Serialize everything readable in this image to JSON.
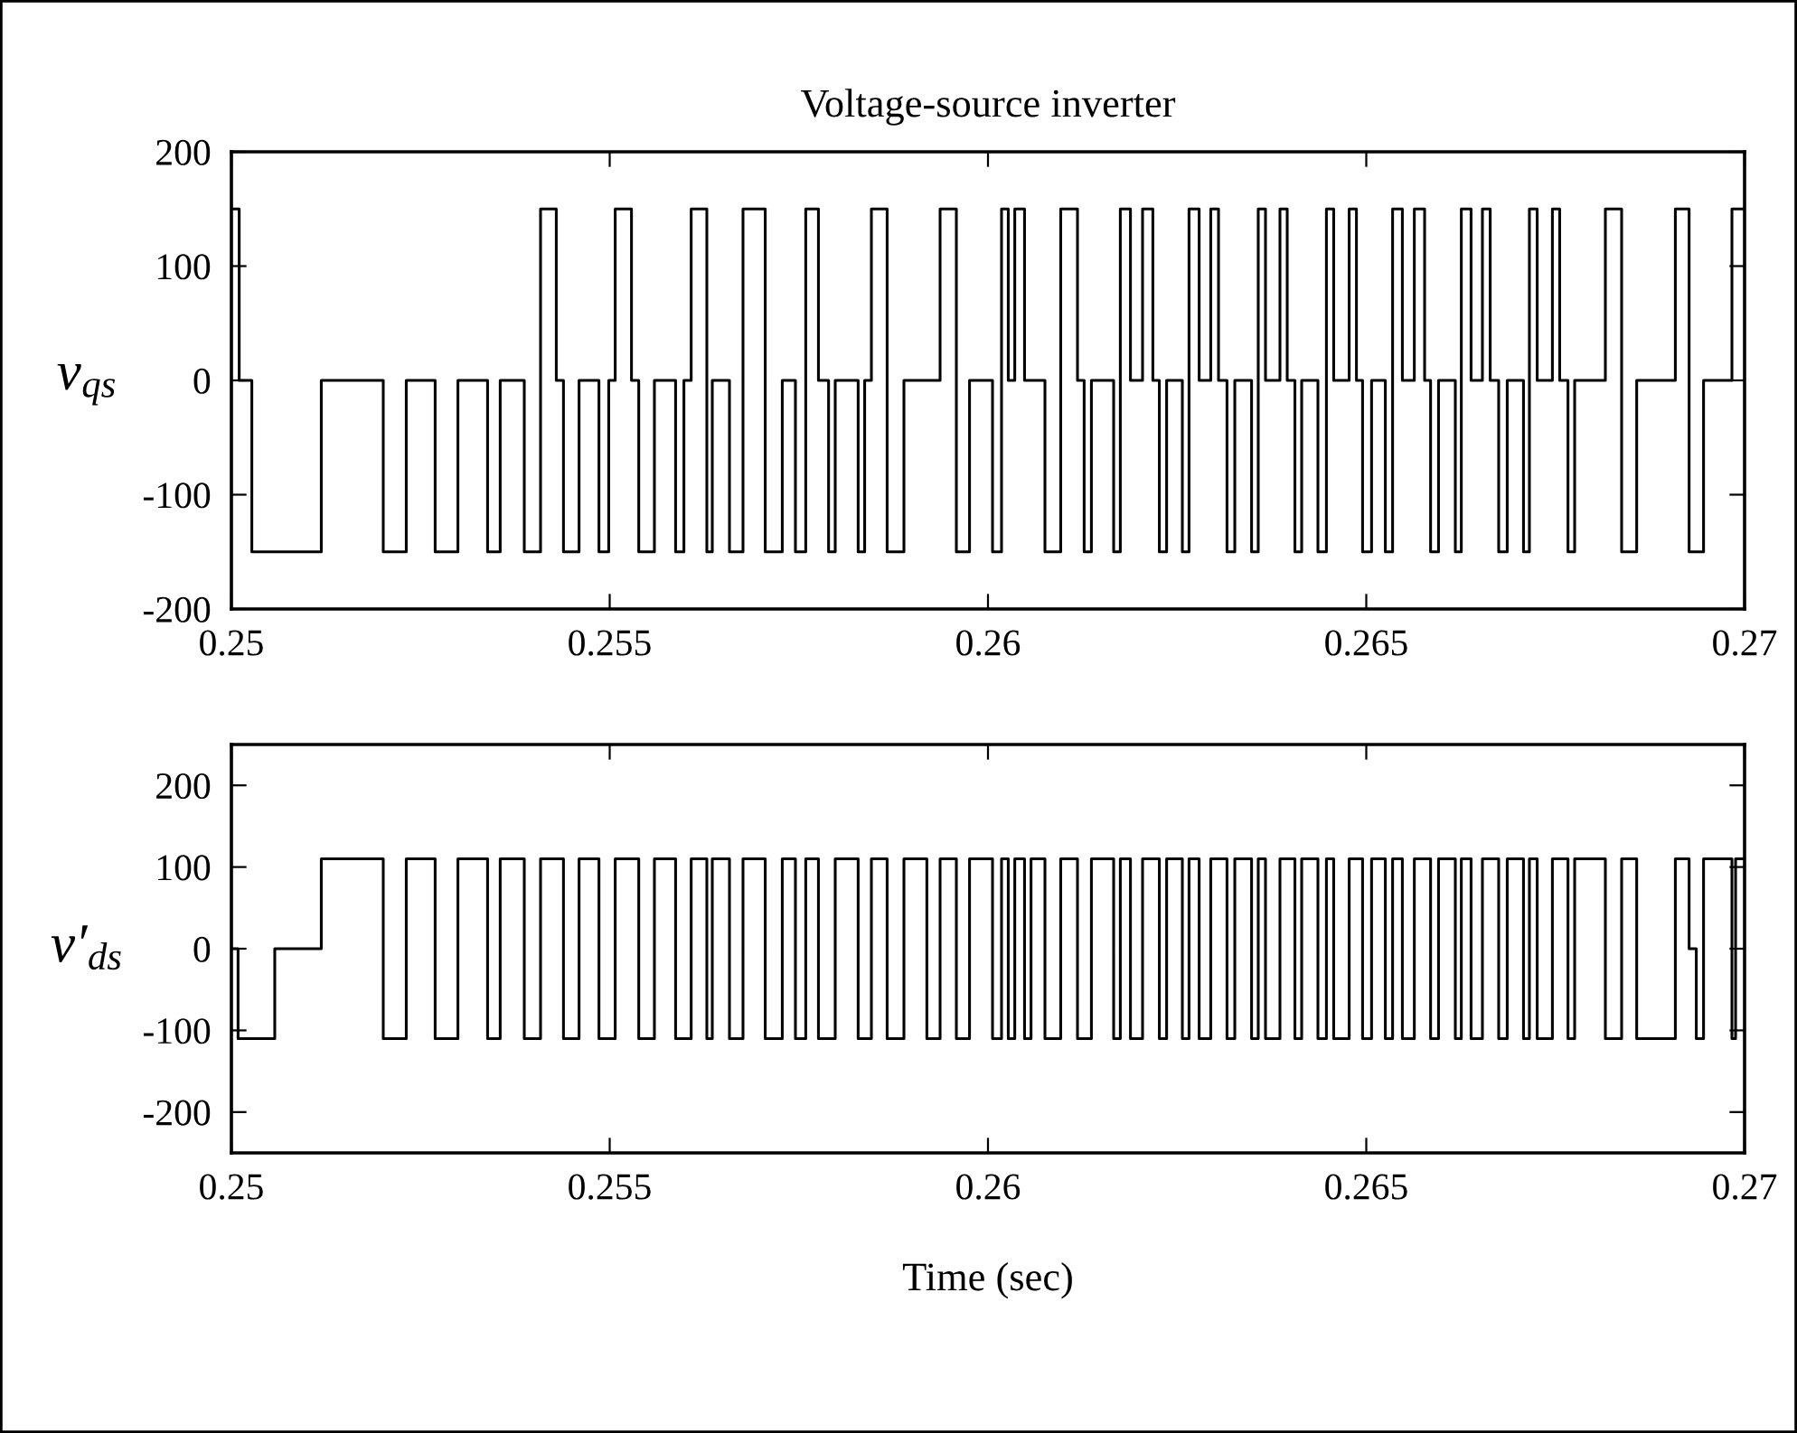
{
  "chart_data": [
    {
      "type": "step",
      "title": "Voltage-source inverter",
      "ylabel": "v$_{qs}$",
      "color": "#000000",
      "grid": false,
      "legend": false,
      "x": [
        0.25,
        0.250103,
        0.25027,
        0.251188,
        0.252007,
        0.252311,
        0.252693,
        0.252994,
        0.253386,
        0.253553,
        0.253871,
        0.254086,
        0.254294,
        0.254389,
        0.254595,
        0.254858,
        0.254987,
        0.255073,
        0.255288,
        0.255384,
        0.255591,
        0.255871,
        0.255981,
        0.256077,
        0.256284,
        0.256356,
        0.256583,
        0.256762,
        0.257056,
        0.257281,
        0.257455,
        0.257591,
        0.257759,
        0.257893,
        0.257981,
        0.258284,
        0.25837,
        0.258459,
        0.258667,
        0.258889,
        0.259367,
        0.259582,
        0.259756,
        0.26006,
        0.260179,
        0.260268,
        0.260354,
        0.260483,
        0.260753,
        0.260961,
        0.261183,
        0.261271,
        0.261367,
        0.261661,
        0.261749,
        0.261883,
        0.262043,
        0.262179,
        0.262265,
        0.262361,
        0.262569,
        0.262657,
        0.262791,
        0.262944,
        0.263047,
        0.263159,
        0.263262,
        0.263484,
        0.263572,
        0.263668,
        0.263859,
        0.263955,
        0.264057,
        0.264146,
        0.264361,
        0.264473,
        0.264569,
        0.264774,
        0.26487,
        0.264951,
        0.26507,
        0.265252,
        0.265348,
        0.265477,
        0.265635,
        0.265771,
        0.26585,
        0.265955,
        0.266177,
        0.266256,
        0.266385,
        0.266535,
        0.266638,
        0.26675,
        0.266863,
        0.267078,
        0.267156,
        0.267259,
        0.26746,
        0.267556,
        0.267666,
        0.267754,
        0.26816,
        0.268375,
        0.268574,
        0.269085,
        0.269267,
        0.269458,
        0.269833,
        0.27
      ],
      "values": [
        150,
        0,
        -150,
        0,
        -150,
        0,
        -150,
        0,
        -150,
        0,
        -150,
        150,
        0,
        -150,
        0,
        -150,
        0,
        150,
        0,
        -150,
        0,
        -150,
        0,
        150,
        -150,
        0,
        -150,
        150,
        -150,
        0,
        -150,
        150,
        0,
        -150,
        0,
        -150,
        0,
        150,
        -150,
        0,
        150,
        -150,
        0,
        -150,
        150,
        0,
        150,
        0,
        -150,
        150,
        0,
        -150,
        0,
        -150,
        150,
        0,
        150,
        0,
        -150,
        0,
        -150,
        150,
        0,
        150,
        0,
        -150,
        0,
        -150,
        150,
        0,
        150,
        0,
        -150,
        0,
        -150,
        150,
        0,
        150,
        0,
        -150,
        0,
        -150,
        150,
        0,
        150,
        0,
        -150,
        0,
        -150,
        150,
        0,
        150,
        0,
        -150,
        0,
        -150,
        150,
        0,
        150,
        0,
        -150,
        0,
        150,
        -150,
        0,
        150,
        -150,
        0,
        150,
        150
      ],
      "xlim": [
        0.25,
        0.27
      ],
      "xticks": [
        0.25,
        0.255,
        0.26,
        0.265,
        0.27
      ],
      "ylim": [
        -200,
        200
      ],
      "yticks": [
        -200,
        -100,
        0,
        100,
        200
      ]
    },
    {
      "type": "step",
      "xlabel": "Time (sec)",
      "ylabel": "v′$_{ds}$",
      "color": "#000000",
      "grid": false,
      "legend": false,
      "x": [
        0.25,
        0.250088,
        0.250573,
        0.251188,
        0.252007,
        0.252311,
        0.252693,
        0.252994,
        0.253386,
        0.253553,
        0.253871,
        0.254086,
        0.254389,
        0.254595,
        0.254858,
        0.255073,
        0.255384,
        0.255591,
        0.255871,
        0.256077,
        0.256284,
        0.256356,
        0.256583,
        0.256762,
        0.257056,
        0.257281,
        0.257455,
        0.257591,
        0.257759,
        0.257981,
        0.258284,
        0.258459,
        0.258667,
        0.258889,
        0.259192,
        0.259367,
        0.259582,
        0.259756,
        0.26006,
        0.260179,
        0.260268,
        0.260354,
        0.260483,
        0.260569,
        0.260753,
        0.260961,
        0.261183,
        0.261367,
        0.261661,
        0.261749,
        0.261883,
        0.262043,
        0.262265,
        0.262361,
        0.262569,
        0.262657,
        0.262791,
        0.262944,
        0.263159,
        0.263262,
        0.263484,
        0.263572,
        0.263668,
        0.263859,
        0.264057,
        0.264146,
        0.264361,
        0.264473,
        0.264569,
        0.264774,
        0.264951,
        0.26507,
        0.265252,
        0.265348,
        0.265477,
        0.265635,
        0.26585,
        0.265955,
        0.266177,
        0.266256,
        0.266385,
        0.266535,
        0.26675,
        0.266863,
        0.267078,
        0.267156,
        0.267259,
        0.26746,
        0.267666,
        0.267754,
        0.26816,
        0.268375,
        0.268574,
        0.269085,
        0.269267,
        0.269362,
        0.269458,
        0.269833,
        0.269881,
        0.27
      ],
      "values": [
        0,
        -110,
        0,
        110,
        -110,
        110,
        -110,
        110,
        -110,
        110,
        -110,
        110,
        -110,
        110,
        -110,
        110,
        -110,
        110,
        -110,
        110,
        -110,
        110,
        -110,
        110,
        -110,
        110,
        -110,
        110,
        -110,
        110,
        -110,
        110,
        -110,
        110,
        -110,
        110,
        -110,
        110,
        -110,
        110,
        -110,
        110,
        -110,
        110,
        -110,
        110,
        -110,
        110,
        -110,
        110,
        -110,
        110,
        -110,
        110,
        -110,
        110,
        -110,
        110,
        -110,
        110,
        -110,
        110,
        -110,
        110,
        -110,
        110,
        -110,
        110,
        -110,
        110,
        -110,
        110,
        -110,
        110,
        -110,
        110,
        -110,
        110,
        -110,
        110,
        -110,
        110,
        -110,
        110,
        -110,
        110,
        -110,
        110,
        -110,
        110,
        -110,
        110,
        -110,
        110,
        0,
        -110,
        110,
        -110,
        110,
        110
      ],
      "xlim": [
        0.25,
        0.27
      ],
      "xticks": [
        0.25,
        0.255,
        0.26,
        0.265,
        0.27
      ],
      "ylim": [
        -250,
        250
      ],
      "yticks": [
        -200,
        -100,
        0,
        100,
        200
      ]
    }
  ]
}
